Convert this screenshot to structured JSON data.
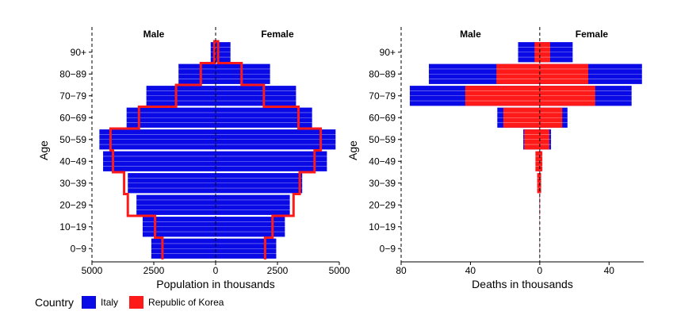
{
  "legend": {
    "title": "Country",
    "items": [
      {
        "label": "Italy",
        "color": "#0a0ae6"
      },
      {
        "label": "Republic of Korea",
        "color": "#ff1a1a"
      }
    ]
  },
  "chart_data": [
    {
      "type": "bar",
      "subtype": "population-pyramid",
      "title": "",
      "xlabel": "Population in thousands",
      "ylabel": "Age",
      "side_labels": {
        "left": "Male",
        "right": "Female"
      },
      "xlim": [
        -5000,
        5000
      ],
      "x_ticks": [
        -5000,
        -2500,
        0,
        2500,
        5000
      ],
      "x_tick_labels": [
        "5000",
        "2500",
        "0",
        "2500",
        "5000"
      ],
      "categories": [
        "0-9",
        "10-19",
        "20-29",
        "30-39",
        "40-49",
        "50-59",
        "60-69",
        "70-79",
        "80-89",
        "90+"
      ],
      "category_labels": [
        "0−9",
        "10−19",
        "20−29",
        "30−39",
        "40−49",
        "50−59",
        "60−69",
        "70−79",
        "80−89",
        "90+"
      ],
      "series": [
        {
          "name": "Italy",
          "style": "bar",
          "color": "#0a0ae6",
          "male": [
            2600,
            2950,
            3200,
            3550,
            4550,
            4700,
            3600,
            2800,
            1500,
            200
          ],
          "female": [
            2450,
            2800,
            3000,
            3500,
            4500,
            4850,
            3900,
            3250,
            2200,
            600
          ]
        },
        {
          "name": "Republic of Korea",
          "style": "step-outline",
          "color": "#ff1a1a",
          "male": [
            2150,
            2450,
            3550,
            3700,
            4150,
            4250,
            3100,
            1600,
            600,
            50
          ],
          "female": [
            2000,
            2300,
            3150,
            3400,
            4000,
            4250,
            3350,
            1950,
            1050,
            100
          ]
        }
      ],
      "grid": false
    },
    {
      "type": "bar",
      "subtype": "population-pyramid",
      "title": "",
      "xlabel": "Deaths in thousands",
      "ylabel": "Age",
      "side_labels": {
        "left": "Male",
        "right": "Female"
      },
      "xlim": [
        -80,
        60
      ],
      "x_ticks": [
        -80,
        -40,
        0,
        40
      ],
      "x_tick_labels": [
        "80",
        "40",
        "0",
        "40"
      ],
      "categories": [
        "0-9",
        "10-19",
        "20-29",
        "30-39",
        "40-49",
        "50-59",
        "60-69",
        "70-79",
        "80-89",
        "90+"
      ],
      "category_labels": [
        "0−9",
        "10−19",
        "20−29",
        "30−39",
        "40−49",
        "50−59",
        "60−69",
        "70−79",
        "80−89",
        "90+"
      ],
      "series": [
        {
          "name": "Italy",
          "style": "bar",
          "color": "#0a0ae6",
          "male": [
            0.05,
            0.05,
            0.15,
            0.4,
            1.2,
            9.5,
            24.5,
            75,
            64,
            12.5
          ],
          "female": [
            0.05,
            0.05,
            0.1,
            0.3,
            1.0,
            6.5,
            16,
            53,
            59,
            19
          ]
        },
        {
          "name": "Republic of Korea",
          "style": "bar",
          "color": "#ff1a1a",
          "male": [
            0.05,
            0.05,
            0.2,
            1.5,
            2.5,
            9,
            21,
            43,
            25,
            3
          ],
          "female": [
            0.05,
            0.05,
            0.1,
            0.8,
            1.5,
            5.5,
            13,
            32,
            28,
            6
          ]
        }
      ],
      "grid": false
    }
  ]
}
